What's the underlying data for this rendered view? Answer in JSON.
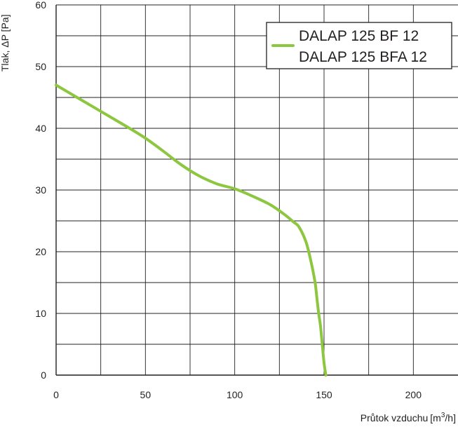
{
  "chart_data": {
    "type": "line",
    "title": "",
    "xlabel": "Průtok vzduchu",
    "xunit_prefix": "[m",
    "xunit_exp": "3",
    "xunit_suffix": "/h]",
    "ylabel": "Tlak, ΔP [Pa]",
    "xlim": [
      0,
      225
    ],
    "ylim": [
      0,
      60
    ],
    "x_major_ticks": [
      0,
      50,
      100,
      150,
      200
    ],
    "x_tick_labels": [
      "0",
      "50",
      "100",
      "150",
      "200"
    ],
    "x_minor_step": 25,
    "y_major_ticks": [
      0,
      10,
      20,
      30,
      40,
      50,
      60
    ],
    "y_tick_labels": [
      "0",
      "10",
      "20",
      "30",
      "40",
      "50",
      "60"
    ],
    "y_minor_step": 5,
    "grid": true,
    "legend_position": "top-right",
    "legend_entries": [
      "DALAP 125 BF 12",
      "DALAP 125 BFA 12"
    ],
    "series": [
      {
        "color": "#8dc63f",
        "x": [
          0,
          10,
          20,
          30,
          40,
          50,
          60,
          70,
          80,
          90,
          100,
          110,
          120,
          128,
          133,
          136,
          140,
          143,
          145,
          146,
          147,
          148,
          149,
          150,
          151
        ],
        "y": [
          47,
          45.3,
          43.6,
          41.9,
          40.2,
          38.4,
          36.3,
          34.1,
          32.3,
          31,
          30.2,
          29,
          27.6,
          26,
          24.8,
          24,
          21.5,
          18,
          15,
          12.5,
          10,
          8,
          5,
          2,
          0
        ]
      }
    ]
  }
}
